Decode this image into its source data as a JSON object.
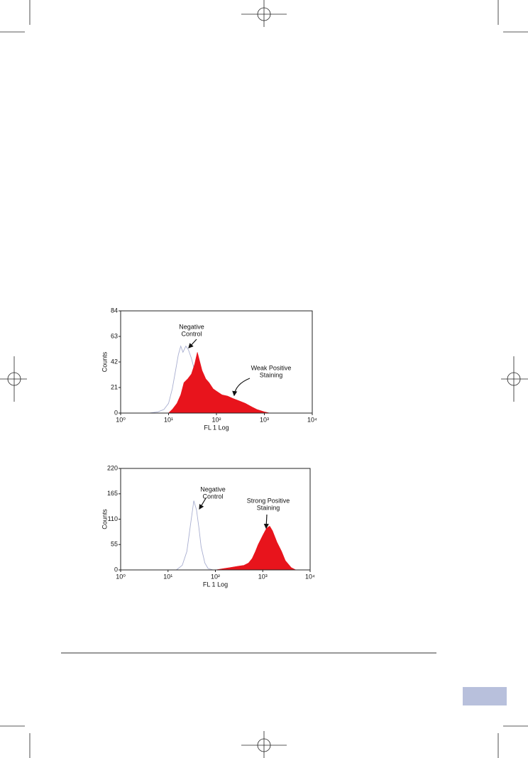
{
  "chart_data": [
    {
      "type": "histogram-log",
      "ylabel": "Counts",
      "xlabel": "FL 1 Log",
      "xscale": "log",
      "xlim": [
        1,
        10000
      ],
      "xticks": [
        {
          "value": 1,
          "label": "10⁰"
        },
        {
          "value": 10,
          "label": "10¹"
        },
        {
          "value": 100,
          "label": "10²"
        },
        {
          "value": 1000,
          "label": "10³"
        },
        {
          "value": 10000,
          "label": "10⁴"
        }
      ],
      "ylim": [
        0,
        84
      ],
      "yticks": [
        0,
        21,
        42,
        63,
        84
      ],
      "annotations": [
        [
          "Negative",
          "Control"
        ],
        [
          "Weak Positive",
          "Staining"
        ]
      ],
      "series": [
        {
          "color": "#a8aed0",
          "fill": false,
          "x": [
            4,
            6,
            8,
            10,
            12,
            14,
            16,
            18,
            20,
            23,
            26,
            30,
            35,
            40,
            50,
            60,
            80,
            100,
            130
          ],
          "values": [
            0,
            1,
            3,
            8,
            20,
            35,
            48,
            55,
            50,
            55,
            52,
            45,
            35,
            25,
            15,
            8,
            3,
            1,
            0
          ]
        },
        {
          "color": "#e8141c",
          "fill": true,
          "x": [
            10,
            12,
            15,
            18,
            21,
            25,
            30,
            35,
            40,
            45,
            50,
            60,
            70,
            85,
            100,
            130,
            170,
            220,
            300,
            400,
            550,
            700,
            1000,
            1300
          ],
          "values": [
            0,
            3,
            8,
            15,
            25,
            28,
            32,
            40,
            50,
            42,
            35,
            28,
            25,
            20,
            18,
            15,
            14,
            12,
            10,
            8,
            5,
            3,
            1,
            0
          ]
        }
      ]
    },
    {
      "type": "histogram-log",
      "ylabel": "Counts",
      "xlabel": "FL 1 Log",
      "xscale": "log",
      "xlim": [
        1,
        10000
      ],
      "xticks": [
        {
          "value": 1,
          "label": "10⁰"
        },
        {
          "value": 10,
          "label": "10¹"
        },
        {
          "value": 100,
          "label": "10²"
        },
        {
          "value": 1000,
          "label": "10³"
        },
        {
          "value": 10000,
          "label": "10⁴"
        }
      ],
      "ylim": [
        0,
        220
      ],
      "yticks": [
        0,
        55,
        110,
        165,
        220
      ],
      "annotations": [
        [
          "Negative",
          "Control"
        ],
        [
          "Strong Positive",
          "Staining"
        ]
      ],
      "series": [
        {
          "color": "#a8aed0",
          "fill": false,
          "x": [
            15,
            20,
            25,
            30,
            35,
            40,
            45,
            50,
            60,
            70,
            90
          ],
          "values": [
            0,
            10,
            40,
            100,
            150,
            130,
            90,
            50,
            15,
            3,
            0
          ]
        },
        {
          "color": "#e8141c",
          "fill": true,
          "x": [
            100,
            150,
            200,
            300,
            400,
            500,
            600,
            700,
            800,
            1000,
            1200,
            1400,
            1600,
            2000,
            2500,
            3000,
            4000,
            5000
          ],
          "values": [
            0,
            3,
            5,
            8,
            10,
            15,
            25,
            40,
            55,
            75,
            90,
            95,
            85,
            60,
            40,
            20,
            5,
            0
          ]
        }
      ]
    }
  ]
}
